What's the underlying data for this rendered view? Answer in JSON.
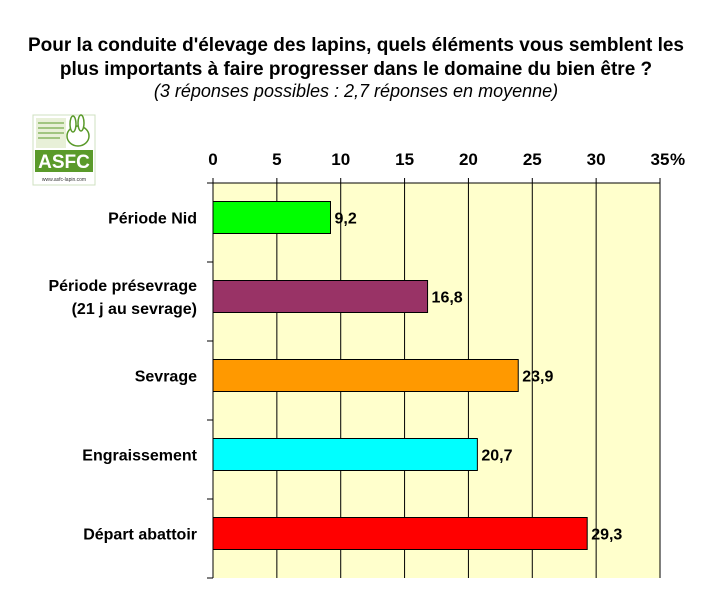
{
  "title_line1": "Pour la conduite d'élevage des lapins, quels éléments vous semblent les",
  "title_line2": "plus importants à faire progresser dans le domaine du bien être ?",
  "subtitle": "(3 réponses possibles : 2,7 réponses en moyenne)",
  "logo": {
    "text": "ASFC",
    "url": "www.asfc-lapin.com"
  },
  "colors": {
    "plot_bg": "#ffffcc",
    "logo_green": "#5a9a2a"
  },
  "chart_data": {
    "type": "bar",
    "orientation": "horizontal",
    "categories": [
      [
        "Période Nid"
      ],
      [
        "Période présevrage",
        "(21 j au sevrage)"
      ],
      [
        "Sevrage"
      ],
      [
        "Engraissement"
      ],
      [
        "Départ abattoir"
      ]
    ],
    "values": [
      9.2,
      16.8,
      23.9,
      20.7,
      29.3
    ],
    "value_labels": [
      "9,2",
      "16,8",
      "23,9",
      "20,7",
      "29,3"
    ],
    "bar_colors": [
      "#00ff00",
      "#993366",
      "#ff9900",
      "#00ffff",
      "#ff0000"
    ],
    "xlim": [
      0,
      35
    ],
    "x_ticks": [
      "0",
      "5",
      "10",
      "15",
      "20",
      "25",
      "30",
      "35"
    ],
    "x_unit": "%",
    "axis_position": "top",
    "grid": true
  }
}
